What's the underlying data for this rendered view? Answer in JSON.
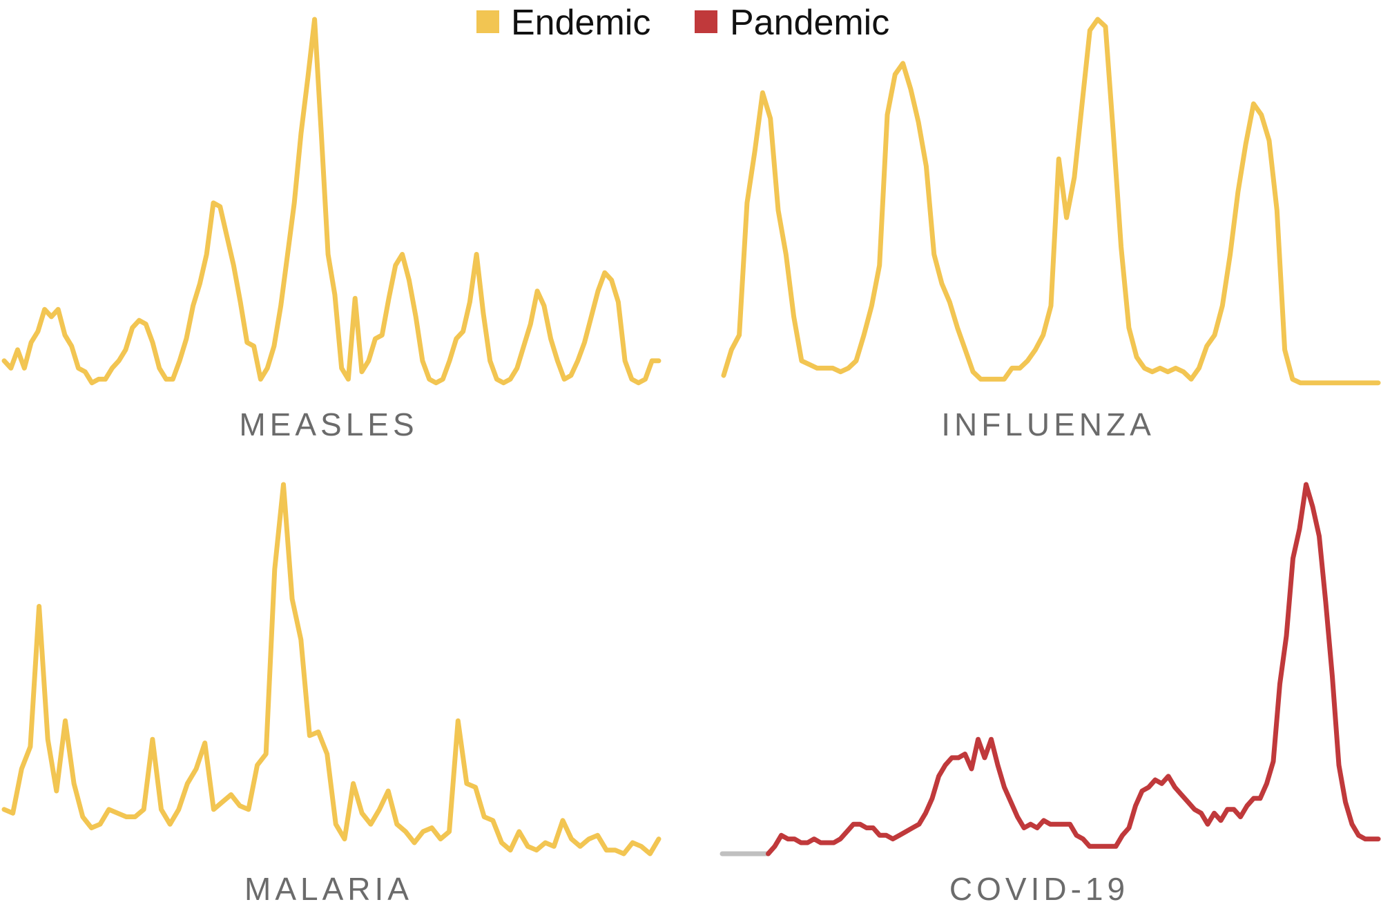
{
  "legend": [
    {
      "label": "Endemic",
      "color": "#f2c552"
    },
    {
      "label": "Pandemic",
      "color": "#c0393b"
    }
  ],
  "chart_data": [
    {
      "type": "line",
      "title": "MEASLES",
      "color": "#f2c552",
      "values": [
        7,
        5,
        10,
        5,
        12,
        15,
        21,
        19,
        21,
        14,
        11,
        5,
        4,
        1,
        2,
        2,
        5,
        7,
        10,
        16,
        18,
        17,
        12,
        5,
        2,
        2,
        7,
        13,
        22,
        28,
        36,
        50,
        49,
        41,
        33,
        23,
        12,
        11,
        2,
        5,
        11,
        22,
        36,
        50,
        69,
        84,
        100,
        69,
        36,
        25,
        5,
        2,
        24,
        4,
        7,
        13,
        14,
        24,
        33,
        36,
        29,
        19,
        7,
        2,
        1,
        2,
        7,
        13,
        15,
        23,
        36,
        20,
        7,
        2,
        1,
        2,
        5,
        11,
        17,
        26,
        22,
        13,
        7,
        2,
        3,
        7,
        12,
        19,
        26,
        31,
        29,
        23,
        7,
        2,
        1,
        2,
        7,
        7
      ]
    },
    {
      "type": "line",
      "title": "INFLUENZA",
      "color": "#f2c552",
      "values": [
        3,
        10,
        14,
        50,
        64,
        80,
        73,
        48,
        36,
        19,
        7,
        6,
        5,
        5,
        5,
        4,
        5,
        7,
        14,
        22,
        33,
        74,
        85,
        88,
        81,
        72,
        60,
        36,
        28,
        23,
        16,
        10,
        4,
        2,
        2,
        2,
        2,
        5,
        5,
        7,
        10,
        14,
        22,
        62,
        46,
        57,
        77,
        97,
        100,
        98,
        69,
        38,
        16,
        8,
        5,
        4,
        5,
        4,
        5,
        4,
        2,
        5,
        11,
        14,
        22,
        36,
        53,
        66,
        77,
        74,
        67,
        48,
        10,
        2,
        1,
        1,
        1,
        1,
        1,
        1,
        1,
        1,
        1,
        1,
        1
      ]
    },
    {
      "type": "line",
      "title": "MALARIA",
      "color": "#f2c552",
      "values": [
        12,
        11,
        23,
        29,
        67,
        31,
        17,
        36,
        19,
        10,
        7,
        8,
        12,
        11,
        10,
        10,
        12,
        31,
        12,
        8,
        12,
        19,
        23,
        30,
        12,
        14,
        16,
        13,
        12,
        24,
        27,
        77,
        100,
        69,
        58,
        32,
        33,
        27,
        8,
        4,
        19,
        11,
        8,
        12,
        17,
        8,
        6,
        3,
        6,
        7,
        4,
        6,
        36,
        19,
        18,
        10,
        9,
        3,
        1,
        6,
        2,
        1,
        3,
        2,
        9,
        4,
        2,
        4,
        5,
        1,
        1,
        0,
        3,
        2,
        0,
        4
      ]
    },
    {
      "type": "line",
      "title": "COVID-19",
      "series": [
        {
          "color": "#c0c0c0",
          "values": [
            0,
            0,
            0,
            0,
            0,
            0,
            0,
            0,
            null,
            null,
            null,
            null,
            null,
            null,
            null,
            null,
            null,
            null,
            null,
            null,
            null,
            null,
            null,
            null,
            null,
            null,
            null,
            null,
            null,
            null,
            null,
            null,
            null,
            null,
            null,
            null,
            null,
            null,
            null,
            null,
            null,
            null,
            null,
            null,
            null,
            null,
            null,
            null,
            null,
            null,
            null,
            null,
            null,
            null,
            null,
            null,
            null,
            null,
            null,
            null,
            null,
            null,
            null,
            null,
            null,
            null,
            null,
            null,
            null,
            null,
            null,
            null,
            null,
            null,
            null,
            null,
            null,
            null,
            null,
            null,
            null,
            null,
            null,
            null,
            null,
            null,
            null,
            null,
            null,
            null,
            null,
            null,
            null,
            null,
            null,
            null,
            null,
            null,
            null,
            null,
            null
          ]
        },
        {
          "color": "#c0393b",
          "values": [
            null,
            null,
            null,
            null,
            null,
            null,
            null,
            0,
            2,
            5,
            4,
            4,
            3,
            3,
            4,
            3,
            3,
            3,
            4,
            6,
            8,
            8,
            7,
            7,
            5,
            5,
            4,
            5,
            6,
            7,
            8,
            11,
            15,
            21,
            24,
            26,
            26,
            27,
            23,
            31,
            26,
            31,
            24,
            18,
            14,
            10,
            7,
            8,
            7,
            9,
            8,
            8,
            8,
            8,
            5,
            4,
            2,
            2,
            2,
            2,
            2,
            5,
            7,
            13,
            17,
            18,
            20,
            19,
            21,
            18,
            16,
            14,
            12,
            11,
            8,
            11,
            9,
            12,
            12,
            10,
            13,
            15,
            15,
            19,
            25,
            46,
            59,
            80,
            88,
            100,
            94,
            86,
            68,
            48,
            24,
            14,
            8,
            5,
            4,
            4,
            4
          ]
        }
      ]
    }
  ]
}
